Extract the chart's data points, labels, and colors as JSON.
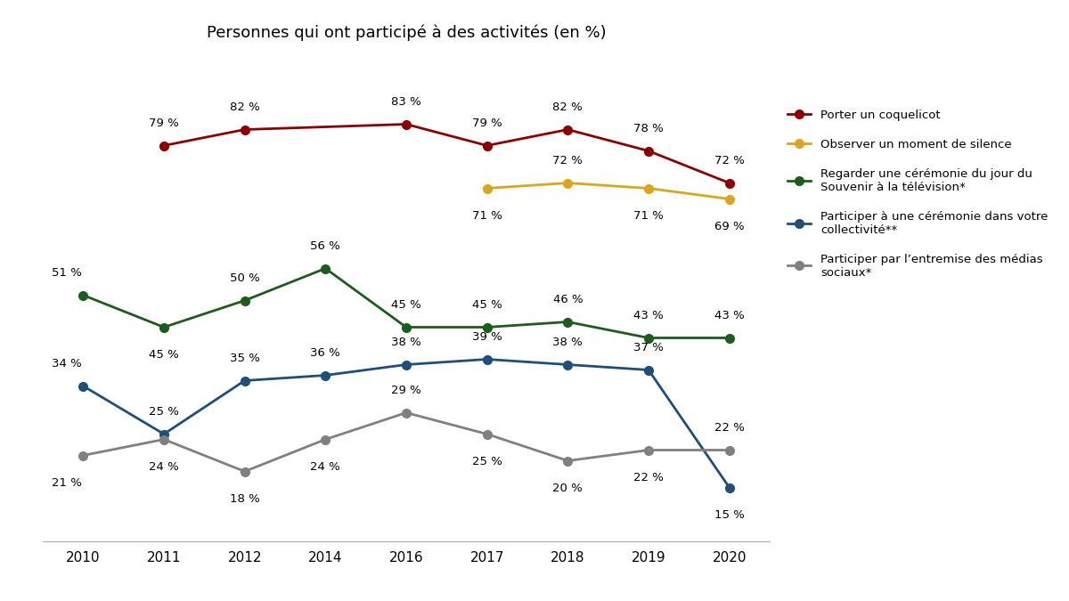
{
  "title": "Personnes qui ont participé à des activités (en %)",
  "years": [
    2010,
    2011,
    2012,
    2014,
    2016,
    2017,
    2018,
    2019,
    2020
  ],
  "series": [
    {
      "label": "Porter un coquelicot",
      "color": "#8B0000",
      "values": [
        null,
        79,
        82,
        null,
        83,
        79,
        82,
        78,
        72
      ]
    },
    {
      "label": "Observer un moment de silence",
      "color": "#DAA520",
      "values": [
        null,
        null,
        null,
        null,
        null,
        71,
        72,
        71,
        69
      ]
    },
    {
      "label": "Regarder une cérémonie du jour du\nSouvenir à la télévision*",
      "color": "#1E5C1E",
      "values": [
        51,
        45,
        50,
        56,
        45,
        45,
        46,
        43,
        43
      ]
    },
    {
      "label": "Participer à une cérémonie dans votre\ncollectivité**",
      "color": "#1F4E79",
      "values": [
        34,
        25,
        35,
        36,
        38,
        39,
        38,
        37,
        15
      ]
    },
    {
      "label": "Participer par l’entremise des médias\nsociaux*",
      "color": "#808080",
      "values": [
        21,
        24,
        18,
        24,
        29,
        25,
        20,
        22,
        22
      ]
    }
  ],
  "ylim": [
    5,
    95
  ],
  "figsize": [
    12,
    6.75
  ],
  "dpi": 100,
  "background_color": "#ffffff",
  "annotation_offsets": [
    [
      [
        0,
        3
      ],
      [
        0,
        3
      ],
      [
        0,
        3
      ],
      [
        0,
        0
      ],
      [
        0,
        3
      ],
      [
        0,
        3
      ],
      [
        0,
        3
      ],
      [
        0,
        3
      ],
      [
        0,
        3
      ]
    ],
    [
      [
        0,
        0
      ],
      [
        0,
        0
      ],
      [
        0,
        0
      ],
      [
        0,
        0
      ],
      [
        0,
        0
      ],
      [
        0,
        -4
      ],
      [
        0,
        3
      ],
      [
        0,
        -4
      ],
      [
        0,
        -4
      ]
    ],
    [
      [
        -0.2,
        3
      ],
      [
        0,
        -4
      ],
      [
        0,
        3
      ],
      [
        0,
        3
      ],
      [
        0,
        3
      ],
      [
        0,
        3
      ],
      [
        0,
        3
      ],
      [
        0,
        3
      ],
      [
        0,
        3
      ]
    ],
    [
      [
        -0.2,
        3
      ],
      [
        0,
        3
      ],
      [
        0,
        3
      ],
      [
        0,
        3
      ],
      [
        0,
        3
      ],
      [
        0,
        3
      ],
      [
        0,
        3
      ],
      [
        0,
        3
      ],
      [
        0,
        -4
      ]
    ],
    [
      [
        -0.2,
        -4
      ],
      [
        0,
        -4
      ],
      [
        0,
        -4
      ],
      [
        0,
        -4
      ],
      [
        0,
        3
      ],
      [
        0,
        -4
      ],
      [
        0,
        -4
      ],
      [
        0,
        -4
      ],
      [
        0,
        3
      ]
    ]
  ],
  "annotation_fontsize": 9.5
}
